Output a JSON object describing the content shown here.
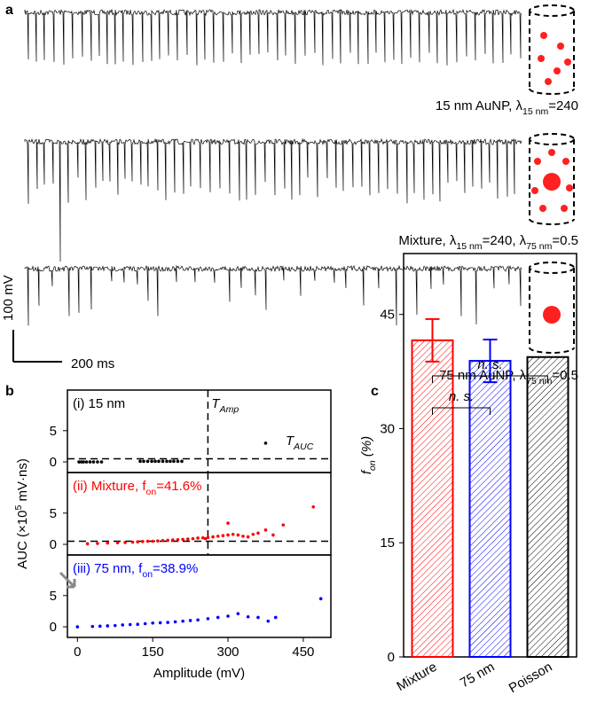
{
  "panel_a": {
    "label": "a",
    "traces": [
      {
        "label": [
          "15 nm AuNP, λ",
          "15 nm",
          "=240"
        ]
      },
      {
        "label": [
          "Mixture, λ",
          "15 nm",
          "=240, λ",
          "75 nm",
          "=0.5"
        ]
      },
      {
        "label": [
          "75 nm AuNP, λ",
          "75 nm",
          "=0.5"
        ]
      }
    ],
    "scale_y": "100 mV",
    "scale_x": "200 ms"
  },
  "chart_data": [
    {
      "type": "scatter",
      "label": "b",
      "x_label": "Amplitude (mV)",
      "y_label": [
        "AUC (×10",
        "5",
        " mV·ns)"
      ],
      "xlim": [
        -20,
        505
      ],
      "xticks": [
        0,
        150,
        300,
        450
      ],
      "ylim": [
        -1.7,
        11.5
      ],
      "yticks": [
        0,
        5
      ],
      "threshold_amp": 260,
      "threshold_amp_label": [
        "T",
        "Amp"
      ],
      "threshold_auc": 0.5,
      "threshold_auc_label": [
        "T",
        "AUC"
      ],
      "series": [
        {
          "name": [
            "(i) 15 nm"
          ],
          "color": "#000000",
          "x": [
            3,
            8,
            12,
            18,
            25,
            32,
            40,
            48,
            125,
            132,
            140,
            148,
            155,
            162,
            170,
            178,
            185,
            192,
            200,
            208,
            375
          ],
          "values": [
            0,
            0,
            0,
            0,
            0,
            0,
            0,
            0,
            0.1,
            0.1,
            0.1,
            0.1,
            0.1,
            0.1,
            0.1,
            0.1,
            0.1,
            0.1,
            0.1,
            0.1,
            3
          ]
        },
        {
          "name": [
            "(ii) Mixture, f",
            "on",
            "=41.6%"
          ],
          "color": "#ff0000",
          "x": [
            20,
            40,
            60,
            80,
            95,
            110,
            120,
            130,
            140,
            150,
            160,
            170,
            180,
            190,
            200,
            210,
            220,
            230,
            240,
            250,
            260,
            270,
            280,
            290,
            300,
            310,
            320,
            330,
            340,
            350,
            360,
            375,
            390,
            410,
            300,
            255,
            470
          ],
          "values": [
            0.1,
            0.15,
            0.2,
            0.25,
            0.3,
            0.35,
            0.4,
            0.45,
            0.5,
            0.5,
            0.55,
            0.6,
            0.65,
            0.7,
            0.75,
            0.8,
            0.85,
            0.9,
            1,
            1.05,
            1.1,
            1.2,
            1.3,
            1.4,
            1.5,
            1.6,
            1.5,
            1.3,
            1.2,
            1.6,
            1.8,
            2.3,
            1.5,
            3.1,
            3.4,
            0.9,
            6.0
          ]
        },
        {
          "name": [
            "(iii) 75 nm, f",
            "on",
            "=38.9%"
          ],
          "color": "#0000ff",
          "x": [
            0,
            30,
            45,
            60,
            75,
            90,
            105,
            120,
            135,
            150,
            165,
            180,
            195,
            210,
            225,
            240,
            260,
            280,
            300,
            320,
            340,
            360,
            380,
            395,
            485
          ],
          "values": [
            0,
            0.05,
            0.1,
            0.15,
            0.2,
            0.3,
            0.35,
            0.4,
            0.5,
            0.6,
            0.65,
            0.7,
            0.8,
            0.9,
            1,
            1.1,
            1.3,
            1.5,
            1.7,
            2.1,
            1.6,
            1.5,
            0.9,
            1.5,
            4.5
          ]
        }
      ]
    },
    {
      "type": "bar",
      "label": "c",
      "y_label": [
        "f",
        "on",
        " (%)"
      ],
      "categories": [
        "Mixture",
        "75 nm",
        "Poisson"
      ],
      "values": [
        41.6,
        38.9,
        39.4
      ],
      "errors": [
        2.8,
        2.8,
        null
      ],
      "colors": [
        "#ff0000",
        "#0000ff",
        "#000000"
      ],
      "ylim": [
        0,
        53
      ],
      "yticks": [
        0,
        15,
        30,
        45
      ],
      "annotations": [
        "n. s.",
        "n. s."
      ]
    }
  ]
}
